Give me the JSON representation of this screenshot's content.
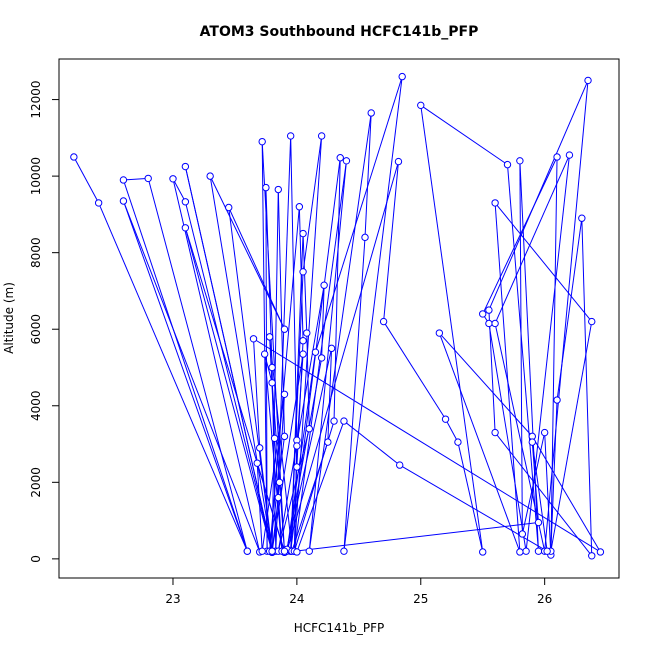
{
  "chart_data": {
    "type": "line",
    "title": "ATOM3 Southbound HCFC141b_PFP",
    "xlabel": "HCFC141b_PFP",
    "ylabel": "Altitude (m)",
    "xlim": [
      22.08,
      26.6
    ],
    "ylim": [
      -500,
      13060
    ],
    "x_ticks": [
      23,
      24,
      25,
      26
    ],
    "y_ticks": [
      0,
      2000,
      4000,
      6000,
      8000,
      10000,
      12000
    ],
    "grid": false,
    "legend": "none",
    "series": [
      {
        "color": "#0000ff",
        "marker": "open-circle",
        "points": [
          [
            22.2,
            10500
          ],
          [
            22.4,
            9300
          ],
          [
            23.6,
            200
          ],
          [
            22.6,
            9900
          ],
          [
            22.8,
            9940
          ],
          [
            23.6,
            200
          ],
          [
            22.6,
            9350
          ],
          [
            23.7,
            180
          ],
          [
            23.0,
            9930
          ],
          [
            23.1,
            9330
          ],
          [
            23.8,
            200
          ],
          [
            23.1,
            10250
          ],
          [
            23.8,
            180
          ],
          [
            23.3,
            10000
          ],
          [
            23.9,
            6000
          ],
          [
            23.45,
            9180
          ],
          [
            23.8,
            170
          ],
          [
            23.1,
            8650
          ],
          [
            23.9,
            170
          ],
          [
            23.72,
            10900
          ],
          [
            23.76,
            200
          ],
          [
            23.75,
            9700
          ],
          [
            23.8,
            5000
          ],
          [
            23.83,
            200
          ],
          [
            23.95,
            11050
          ],
          [
            24.0,
            3100
          ],
          [
            23.98,
            200
          ],
          [
            24.2,
            11050
          ],
          [
            24.05,
            7500
          ],
          [
            23.95,
            200
          ],
          [
            24.35,
            10480
          ],
          [
            24.3,
            3600
          ],
          [
            23.98,
            200
          ],
          [
            24.4,
            10400
          ],
          [
            24.1,
            200
          ],
          [
            24.6,
            11650
          ],
          [
            24.55,
            8400
          ],
          [
            24.38,
            200
          ],
          [
            24.85,
            12600
          ],
          [
            24.15,
            5400
          ],
          [
            23.92,
            200
          ],
          [
            24.82,
            10380
          ],
          [
            24.7,
            6200
          ],
          [
            25.2,
            3650
          ],
          [
            25.3,
            3050
          ],
          [
            25.5,
            180
          ],
          [
            25.0,
            11850
          ],
          [
            25.7,
            10300
          ],
          [
            25.95,
            200
          ],
          [
            25.8,
            10400
          ],
          [
            25.82,
            650
          ],
          [
            26.0,
            3300
          ],
          [
            26.05,
            100
          ],
          [
            26.1,
            10500
          ],
          [
            25.5,
            6400
          ],
          [
            25.55,
            6150
          ],
          [
            25.85,
            200
          ],
          [
            26.2,
            10550
          ],
          [
            25.6,
            6150
          ],
          [
            26.0,
            200
          ],
          [
            26.35,
            12500
          ],
          [
            25.55,
            6500
          ],
          [
            25.6,
            3300
          ],
          [
            26.38,
            80
          ],
          [
            26.3,
            8900
          ],
          [
            26.1,
            4150
          ],
          [
            26.05,
            200
          ],
          [
            26.38,
            6200
          ],
          [
            25.6,
            9300
          ],
          [
            25.8,
            180
          ],
          [
            25.15,
            5900
          ],
          [
            25.9,
            3200
          ],
          [
            26.45,
            180
          ],
          [
            23.65,
            5750
          ],
          [
            23.7,
            2900
          ],
          [
            23.8,
            200
          ],
          [
            23.85,
            9650
          ],
          [
            23.9,
            3200
          ],
          [
            23.78,
            200
          ],
          [
            24.02,
            9200
          ],
          [
            24.05,
            5700
          ],
          [
            24.0,
            2400
          ],
          [
            23.95,
            200
          ],
          [
            24.05,
            8500
          ],
          [
            24.08,
            5900
          ],
          [
            24.1,
            3400
          ],
          [
            23.85,
            200
          ],
          [
            24.22,
            7150
          ],
          [
            24.2,
            5250
          ],
          [
            23.92,
            250
          ],
          [
            24.28,
            5500
          ],
          [
            24.25,
            3050
          ],
          [
            23.96,
            200
          ],
          [
            23.78,
            5800
          ],
          [
            23.82,
            3150
          ],
          [
            23.88,
            200
          ],
          [
            23.74,
            5350
          ],
          [
            23.8,
            4600
          ],
          [
            23.86,
            2000
          ],
          [
            23.9,
            200
          ],
          [
            23.68,
            2500
          ],
          [
            23.72,
            200
          ],
          [
            23.9,
            4300
          ],
          [
            23.85,
            1600
          ],
          [
            23.8,
            200
          ],
          [
            24.05,
            5350
          ],
          [
            24.0,
            2950
          ],
          [
            23.98,
            200
          ],
          [
            25.95,
            950
          ],
          [
            25.9,
            3050
          ],
          [
            26.02,
            200
          ],
          [
            24.83,
            2450
          ],
          [
            24.38,
            3600
          ],
          [
            24.0,
            180
          ]
        ]
      }
    ]
  }
}
